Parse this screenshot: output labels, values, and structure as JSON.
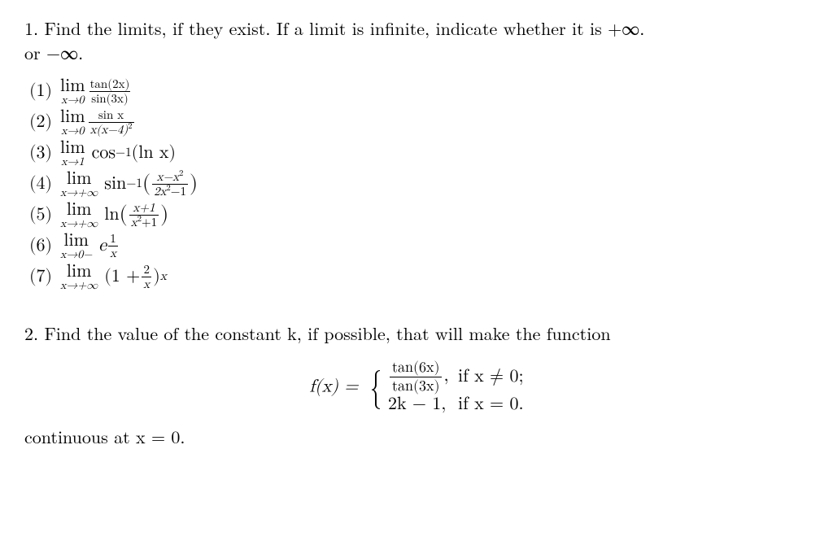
{
  "q1": {
    "intro_line1": "1. Find the limits, if they exist. If a limit is infinite, indicate whether it is +∞.",
    "intro_line2": "or −∞.",
    "items": {
      "n1": "(1)",
      "n2": "(2)",
      "n3": "(3)",
      "n4": "(4)",
      "n5": "(5)",
      "n6": "(6)",
      "n7": "(7)",
      "lim": "lim",
      "sub1": "x→0",
      "sub2": "x→0",
      "sub3": "x→1",
      "sub4": "x→+∞",
      "sub5": "x→+∞",
      "sub6": "x→0−",
      "sub7": "x→+∞",
      "f1_num": "tan(2x)",
      "f1_den": "sin(3x)",
      "f2_num": "sin x",
      "f2_den": "x(x−4)",
      "f2_den_sup": "2",
      "f3_a": "cos",
      "f3_sup": "−1",
      "f3_b": "(ln x)",
      "f4_a": "sin",
      "f4_sup": "−1",
      "f4_lpar": "(",
      "f4_num": "x−x",
      "f4_num_sup": "2",
      "f4_den_a": "2x",
      "f4_den_sup": "2",
      "f4_den_b": "−1",
      "f4_rpar": ")",
      "f5_a": "ln",
      "f5_lpar": "(",
      "f5_num": "x+1",
      "f5_den_a": "x",
      "f5_den_sup": "2",
      "f5_den_b": "+1",
      "f5_rpar": ")",
      "f6_e": "e",
      "f6_sup_num": "1",
      "f6_sup_den": "x",
      "f7_lpar": "(1 +",
      "f7_num": "2",
      "f7_den": "x",
      "f7_rpar": ")",
      "f7_sup": "x"
    }
  },
  "q2": {
    "intro": "2. Find the value of the constant k, if possible, that will make the function",
    "fx": "f(x) =",
    "case1_num": "tan(6x)",
    "case1_den": "tan(3x)",
    "case1_comma": ",",
    "case1_cond": "if x ≠ 0;",
    "case2_expr": "2k − 1,",
    "case2_cond": "if x = 0.",
    "tail": "continuous at x = 0."
  }
}
